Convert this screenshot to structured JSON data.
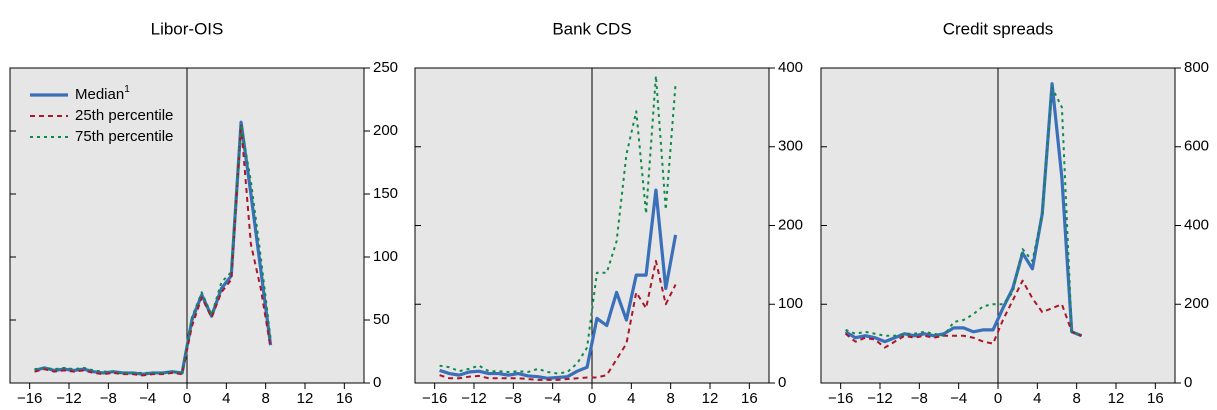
{
  "chart_data": [
    {
      "type": "line",
      "title": "Libor-OIS",
      "x": [
        -15.5,
        -14.5,
        -13.5,
        -12.5,
        -11.5,
        -10.5,
        -9.5,
        -8.5,
        -7.5,
        -6.5,
        -5.5,
        -4.5,
        -3.5,
        -2.5,
        -1.5,
        -0.5,
        0.5,
        1.5,
        2.5,
        3.5,
        4.5,
        5.5,
        6.5,
        7.5,
        8.5
      ],
      "series": [
        {
          "name": "Median",
          "name_superscript": "1",
          "color": "#3a6fba",
          "values": [
            10,
            12,
            10,
            11,
            10,
            11,
            9,
            8,
            9,
            8,
            8,
            7,
            8,
            8,
            9,
            8,
            50,
            70,
            53,
            75,
            85,
            207,
            150,
            90,
            30
          ]
        },
        {
          "name": "25th percentile",
          "color": "#a8172a",
          "values": [
            9,
            11,
            9,
            10,
            9,
            10,
            8,
            7,
            8,
            7,
            7,
            6,
            7,
            7,
            8,
            7,
            45,
            68,
            52,
            72,
            82,
            205,
            110,
            75,
            28
          ]
        },
        {
          "name": "75th percentile",
          "color": "#0f8a4a",
          "values": [
            11,
            12,
            11,
            12,
            11,
            12,
            10,
            9,
            9,
            8,
            8,
            8,
            8,
            8,
            9,
            8,
            52,
            72,
            54,
            80,
            88,
            205,
            160,
            100,
            35
          ]
        }
      ],
      "xlim": [
        -18,
        18
      ],
      "xticks": [
        {
          "value": -16,
          "label": "−16"
        },
        {
          "value": -12,
          "label": "−12"
        },
        {
          "value": -8,
          "label": "−8"
        },
        {
          "value": -4,
          "label": "−4"
        },
        0,
        4,
        8,
        12,
        16
      ],
      "ylim": [
        0,
        250
      ],
      "yticks": [
        0,
        50,
        100,
        150,
        200,
        250
      ]
    },
    {
      "type": "line",
      "title": "Bank CDS",
      "x": [
        -15.5,
        -14.5,
        -13.5,
        -12.5,
        -11.5,
        -10.5,
        -9.5,
        -8.5,
        -7.5,
        -6.5,
        -5.5,
        -4.5,
        -3.5,
        -2.5,
        -1.5,
        -0.5,
        0.5,
        1.5,
        2.5,
        3.5,
        4.5,
        5.5,
        6.5,
        7.5,
        8.5
      ],
      "series": [
        {
          "color": "#3a6fba",
          "values": [
            16,
            12,
            10,
            14,
            15,
            12,
            12,
            10,
            12,
            9,
            8,
            6,
            7,
            8,
            15,
            20,
            82,
            73,
            115,
            80,
            137,
            137,
            245,
            120,
            188
          ]
        },
        {
          "color": "#a8172a",
          "values": [
            10,
            6,
            6,
            8,
            9,
            6,
            6,
            6,
            6,
            5,
            4,
            4,
            4,
            5,
            6,
            7,
            7,
            10,
            30,
            50,
            115,
            95,
            155,
            100,
            125
          ]
        },
        {
          "color": "#0f8a4a",
          "values": [
            22,
            20,
            15,
            18,
            22,
            15,
            15,
            14,
            15,
            14,
            18,
            14,
            12,
            14,
            25,
            45,
            140,
            140,
            180,
            290,
            345,
            215,
            390,
            220,
            380
          ]
        }
      ],
      "xlim": [
        -18,
        18
      ],
      "xticks": [
        {
          "value": -16,
          "label": "−16"
        },
        {
          "value": -12,
          "label": "−12"
        },
        {
          "value": -8,
          "label": "−8"
        },
        {
          "value": -4,
          "label": "−4"
        },
        0,
        4,
        8,
        12,
        16
      ],
      "ylim": [
        0,
        400
      ],
      "yticks": [
        0,
        100,
        200,
        300,
        400
      ]
    },
    {
      "type": "line",
      "title": "Credit spreads",
      "x": [
        -15.5,
        -14.5,
        -13.5,
        -12.5,
        -11.5,
        -10.5,
        -9.5,
        -8.5,
        -7.5,
        -6.5,
        -5.5,
        -4.5,
        -3.5,
        -2.5,
        -1.5,
        -0.5,
        0.5,
        1.5,
        2.5,
        3.5,
        4.5,
        5.5,
        6.5,
        7.5,
        8.5
      ],
      "series": [
        {
          "color": "#3a6fba",
          "values": [
            130,
            115,
            120,
            115,
            105,
            115,
            125,
            120,
            125,
            120,
            125,
            140,
            140,
            130,
            135,
            135,
            190,
            240,
            330,
            290,
            430,
            760,
            520,
            130,
            120
          ]
        },
        {
          "color": "#a8172a",
          "values": [
            125,
            105,
            115,
            110,
            90,
            105,
            120,
            115,
            120,
            115,
            120,
            120,
            120,
            115,
            105,
            100,
            160,
            210,
            260,
            215,
            180,
            190,
            200,
            130,
            120
          ]
        },
        {
          "color": "#0f8a4a",
          "values": [
            135,
            125,
            130,
            125,
            120,
            120,
            125,
            125,
            130,
            125,
            120,
            155,
            160,
            175,
            195,
            200,
            200,
            230,
            340,
            310,
            430,
            750,
            700,
            130,
            120
          ]
        }
      ],
      "xlim": [
        -18,
        18
      ],
      "xticks": [
        {
          "value": -16,
          "label": "−16"
        },
        {
          "value": -12,
          "label": "−12"
        },
        {
          "value": -8,
          "label": "−8"
        },
        {
          "value": -4,
          "label": "−4"
        },
        0,
        4,
        8,
        12,
        16
      ],
      "ylim": [
        0,
        800
      ],
      "yticks": [
        0,
        200,
        400,
        600,
        800
      ]
    }
  ]
}
